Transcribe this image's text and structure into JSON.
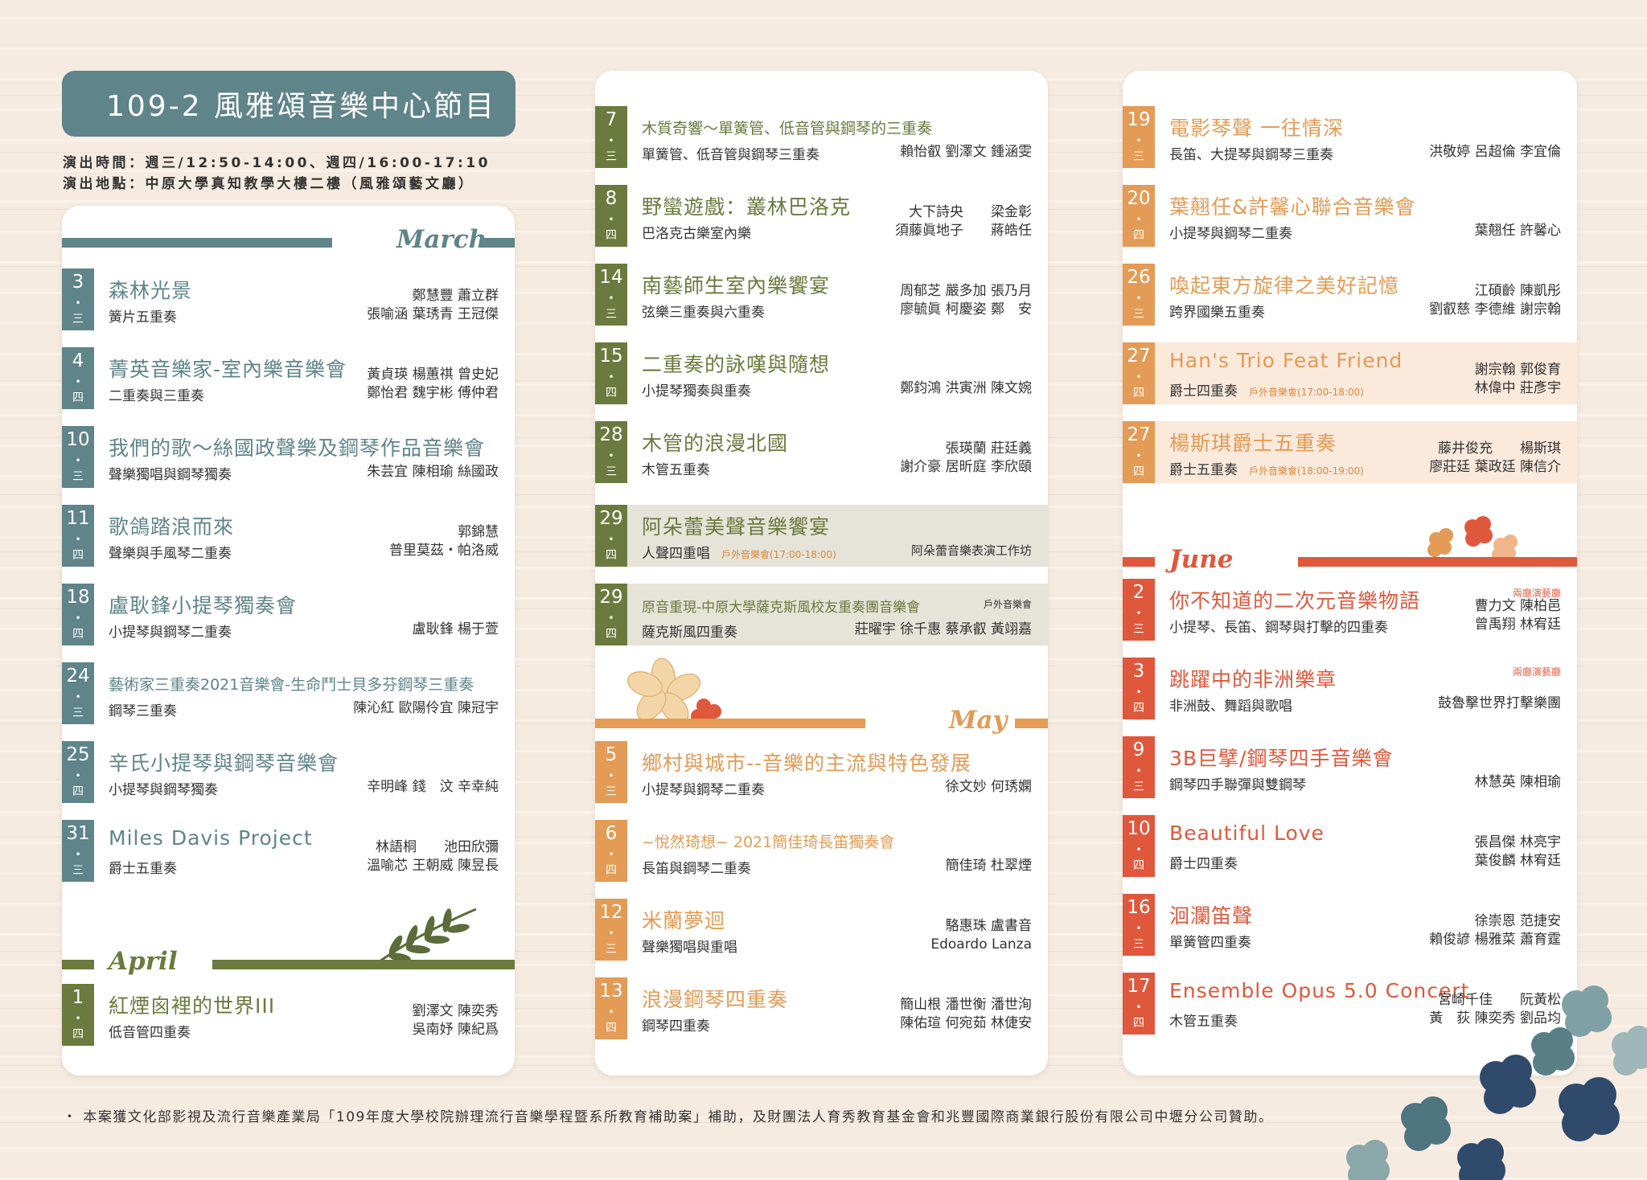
{
  "header": {
    "title": "109-2 風雅頌音樂中心節目",
    "time": "演出時間：週三/12:50-14:00、週四/16:00-17:10",
    "place": "演出地點：中原大學真知教學大樓二樓（風雅頌藝文廳）"
  },
  "months": {
    "march": "March",
    "april": "April",
    "may": "May",
    "june": "June"
  },
  "col1": [
    {
      "d": "3",
      "w": "三",
      "t": "森林光景",
      "s": "簧片五重奏",
      "p": [
        "鄭慧豐 蕭立群",
        "張喻涵 葉琇青 王冠傑"
      ]
    },
    {
      "d": "4",
      "w": "四",
      "t": "菁英音樂家-室內樂音樂會",
      "s": "二重奏與三重奏",
      "p": [
        "黃貞瑛 楊蕙祺 曾史妃",
        "鄭怡君 魏宇彬 傅仲君"
      ]
    },
    {
      "d": "10",
      "w": "三",
      "t": "我們的歌～絲國政聲樂及鋼琴作品音樂會",
      "s": "聲樂獨唱與鋼琴獨奏",
      "p": [
        "朱芸宜 陳相瑜 絲國政"
      ]
    },
    {
      "d": "11",
      "w": "四",
      "t": "歌鴿踏浪而來",
      "s": "聲樂與手風琴二重奏",
      "p": [
        "郭錦慧",
        "普里莫茲・帕洛威"
      ]
    },
    {
      "d": "18",
      "w": "四",
      "t": "盧耿鋒小提琴獨奏會",
      "s": "小提琴與鋼琴二重奏",
      "p": [
        "盧耿鋒 楊于萱"
      ]
    },
    {
      "d": "24",
      "w": "三",
      "t": "藝術家三重奏2021音樂會-生命鬥士貝多芬鋼琴三重奏",
      "s": "鋼琴三重奏",
      "p": [
        "陳沁紅 歐陽伶宜 陳冠宇"
      ]
    },
    {
      "d": "25",
      "w": "四",
      "t": "辛氏小提琴與鋼琴音樂會",
      "s": "小提琴與鋼琴獨奏",
      "p": [
        "辛明峰 錢　汶 辛幸純"
      ]
    },
    {
      "d": "31",
      "w": "三",
      "t": "Miles Davis Project",
      "s": "爵士五重奏",
      "p": [
        "林語桐　　池田欣彌",
        "溫喻芯 王朝威 陳昱長"
      ]
    }
  ],
  "april1": {
    "d": "1",
    "w": "四",
    "t": "紅煙囪裡的世界III",
    "s": "低音管四重奏",
    "p": [
      "劉澤文 陳奕秀",
      "吳南妤 陳紀爲"
    ]
  },
  "col2a": [
    {
      "d": "7",
      "w": "三",
      "t": "木質奇響～單簧管、低音管與鋼琴的三重奏",
      "s": "單簧管、低音管與鋼琴三重奏",
      "p": [
        "賴怡叡 劉澤文 鍾涵雯"
      ]
    },
    {
      "d": "8",
      "w": "四",
      "t": "野蠻遊戲：叢林巴洛克",
      "s": "巴洛克古樂室內樂",
      "p": [
        "大下詩央　　梁金彰",
        "須藤眞地子　　蔣皓任"
      ]
    },
    {
      "d": "14",
      "w": "三",
      "t": "南藝師生室內樂饗宴",
      "s": "弦樂三重奏與六重奏",
      "p": [
        "周郁芝 嚴多加 張乃月",
        "廖毓眞 柯慶姿 鄭　安"
      ]
    },
    {
      "d": "15",
      "w": "四",
      "t": "二重奏的詠嘆與隨想",
      "s": "小提琴獨奏與重奏",
      "p": [
        "鄭鈞鴻 洪寅洲 陳文婉"
      ]
    },
    {
      "d": "28",
      "w": "三",
      "t": "木管的浪漫北國",
      "s": "木管五重奏",
      "p": [
        "張瑛蘭 莊廷義",
        "謝介豪 居昕庭 李欣頤"
      ]
    }
  ],
  "ev29a": {
    "d": "29",
    "w": "四",
    "t": "阿朵蕾美聲音樂饗宴",
    "s": "人聲四重唱",
    "o": "戶外音樂會(17:00-18:00)",
    "p": "阿朵蕾音樂表演工作坊"
  },
  "ev29b": {
    "d": "29",
    "w": "四",
    "t": "原音重現-中原大學薩克斯風校友重奏團音樂會",
    "tag": "戶外音樂會",
    "s": "薩克斯風四重奏",
    "p": "莊曜宇 徐千惠 蔡承叡 黃翊嘉"
  },
  "col2b": [
    {
      "d": "5",
      "w": "三",
      "t": "鄉村與城市--音樂的主流與特色發展",
      "s": "小提琴與鋼琴二重奏",
      "p": [
        "徐文妙 何琇嫻"
      ]
    },
    {
      "d": "6",
      "w": "四",
      "t": "~悅然琦想~ 2021簡佳琦長笛獨奏會",
      "s": "長笛與鋼琴二重奏",
      "p": [
        "簡佳琦 杜翠煙"
      ]
    },
    {
      "d": "12",
      "w": "三",
      "t": "米蘭夢迴",
      "s": "聲樂獨唱與重唱",
      "p": [
        "駱惠珠 盧書音",
        "Edoardo Lanza"
      ]
    },
    {
      "d": "13",
      "w": "四",
      "t": "浪漫鋼琴四重奏",
      "s": "鋼琴四重奏",
      "p": [
        "簡山根 潘世衡 潘世洵",
        "陳佑瑄 何宛茹 林倢安"
      ]
    }
  ],
  "col3a": [
    {
      "d": "19",
      "w": "三",
      "t": "電影琴聲 一往情深",
      "s": "長笛、大提琴與鋼琴三重奏",
      "p": [
        "洪敬婷 呂超倫 李宜倫"
      ]
    },
    {
      "d": "20",
      "w": "四",
      "t": "葉翹任&許馨心聯合音樂會",
      "s": "小提琴與鋼琴二重奏",
      "p": [
        "葉翹任 許馨心"
      ]
    },
    {
      "d": "26",
      "w": "三",
      "t": "喚起東方旋律之美好記憶",
      "s": "跨界國樂五重奏",
      "p": [
        "江碩齡 陳凱彤",
        "劉叡慈 李德維 謝宗翰"
      ]
    }
  ],
  "col3b": [
    {
      "d": "27",
      "w": "四",
      "t": "Han's Trio Feat Friend",
      "s": "爵士四重奏",
      "o": "戶外音樂會(17:00-18:00)",
      "p": [
        "謝宗翰 郭俊育",
        "林偉中 莊彥宇"
      ]
    },
    {
      "d": "27",
      "w": "四",
      "t": "楊斯琪爵士五重奏",
      "s": "爵士五重奏",
      "o": "戶外音樂會(18:00-19:00)",
      "p": [
        "藤井俊充　　楊斯琪",
        "廖莊廷 葉政廷 陳信介"
      ]
    }
  ],
  "col3c": [
    {
      "d": "2",
      "w": "三",
      "t": "你不知道的二次元音樂物語",
      "s": "小提琴、長笛、鋼琴與打擊的四重奏",
      "v": "兩廳演藝廳",
      "p": [
        "曹力文 陳柏邑",
        "曾禹翔 林宥廷"
      ]
    },
    {
      "d": "3",
      "w": "四",
      "t": "跳躍中的非洲樂章",
      "s": "非洲鼓、舞蹈與歌唱",
      "v": "兩廳演藝廳",
      "p": [
        "鼓魯擊世界打擊樂團"
      ]
    },
    {
      "d": "9",
      "w": "三",
      "t": "3B巨擘/鋼琴四手音樂會",
      "s": "鋼琴四手聯彈與雙鋼琴",
      "v": "",
      "p": [
        "林慧英 陳相瑜"
      ]
    },
    {
      "d": "10",
      "w": "四",
      "t": "Beautiful Love",
      "s": "爵士四重奏",
      "v": "",
      "p": [
        "張昌傑 林亮宇",
        "葉俊麟 林宥廷"
      ]
    },
    {
      "d": "16",
      "w": "三",
      "t": "洄瀾笛聲",
      "s": "單簧管四重奏",
      "v": "",
      "p": [
        "徐崇恩 范捷安",
        "賴俊諺 楊雅菜 蕭育霆"
      ]
    },
    {
      "d": "17",
      "w": "四",
      "t": "Ensemble Opus 5.0 Concert",
      "s": "木管五重奏",
      "v": "",
      "p": [
        "宮崎千佳　　阮黃松",
        "黃　荻 陳奕秀 劉品均"
      ]
    }
  ],
  "footer": "・ 本案獲文化部影視及流行音樂產業局「109年度大學校院辦理流行音樂學程暨系所教育補助案」補助，及財團法人育秀教育基金會和兆豐國際商業銀行股份有限公司中壢分公司贊助。"
}
